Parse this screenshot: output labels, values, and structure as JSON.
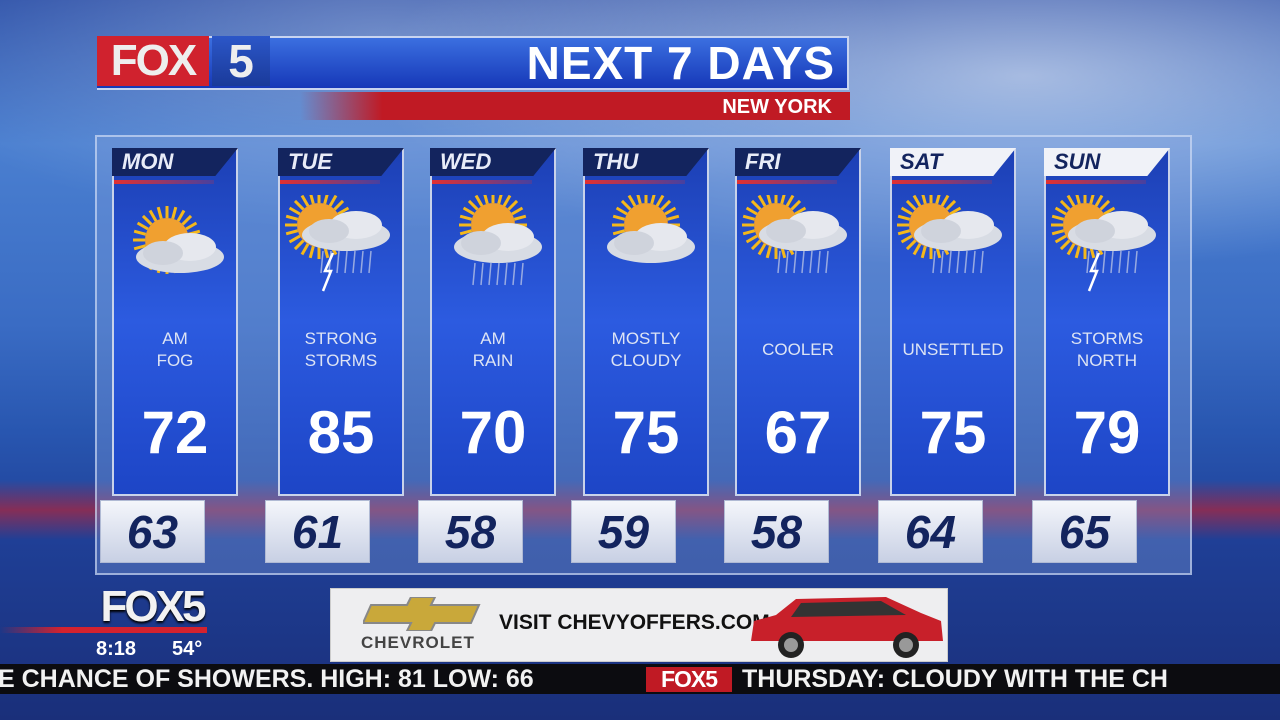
{
  "header": {
    "logo_fox": "FOX",
    "logo_num": "5",
    "title": "NEXT 7 DAYS",
    "location": "NEW YORK"
  },
  "days": [
    {
      "day": "MON",
      "condition": [
        "AM",
        "FOG"
      ],
      "high": "72",
      "low": "63",
      "icon": "partly-sunny-fog",
      "weekend": false
    },
    {
      "day": "TUE",
      "condition": [
        "STRONG",
        "STORMS"
      ],
      "high": "85",
      "low": "61",
      "icon": "sun-thunderstorm",
      "weekend": false
    },
    {
      "day": "WED",
      "condition": [
        "AM",
        "RAIN"
      ],
      "high": "70",
      "low": "58",
      "icon": "sun-cloud-rain",
      "weekend": false
    },
    {
      "day": "THU",
      "condition": [
        "MOSTLY",
        "CLOUDY"
      ],
      "high": "75",
      "low": "59",
      "icon": "mostly-cloudy",
      "weekend": false
    },
    {
      "day": "FRI",
      "condition": [
        "COOLER"
      ],
      "high": "67",
      "low": "58",
      "icon": "sun-cloud-showers",
      "weekend": false
    },
    {
      "day": "SAT",
      "condition": [
        "UNSETTLED"
      ],
      "high": "75",
      "low": "64",
      "icon": "sun-cloud-showers",
      "weekend": true
    },
    {
      "day": "SUN",
      "condition": [
        "STORMS",
        "NORTH"
      ],
      "high": "79",
      "low": "65",
      "icon": "sun-thunderstorm",
      "weekend": true
    }
  ],
  "bug": {
    "logo": "FOX5",
    "time": "8:18",
    "temp": "54°"
  },
  "ad": {
    "brand": "CHEVROLET",
    "text": "VISIT CHEVYOFFERS.COM"
  },
  "ticker": {
    "left": "E CHANCE OF SHOWERS. HIGH: 81 LOW: 66",
    "logo": "FOX5",
    "right": "THURSDAY: CLOUDY WITH THE CH"
  },
  "colors": {
    "fox_red": "#d0222e",
    "navy": "#13245e",
    "card_blue": "#2c5be0"
  }
}
